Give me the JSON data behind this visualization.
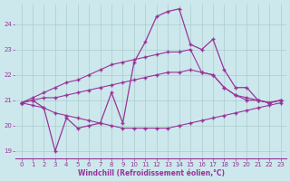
{
  "xlabel": "Windchill (Refroidissement éolien,°C)",
  "background_color": "#cce8ec",
  "grid_color": "#aacccc",
  "line_color": "#993399",
  "x_ticks": [
    0,
    1,
    2,
    3,
    4,
    5,
    6,
    7,
    8,
    9,
    10,
    11,
    12,
    13,
    14,
    15,
    16,
    17,
    18,
    19,
    20,
    21,
    22,
    23
  ],
  "ylim": [
    18.7,
    24.8
  ],
  "xlim": [
    -0.5,
    23.5
  ],
  "yticks": [
    19,
    20,
    21,
    22,
    23,
    24
  ],
  "line1_x": [
    0,
    1,
    2,
    3,
    4,
    5,
    6,
    7,
    8,
    9,
    10,
    11,
    12,
    13,
    14,
    15,
    16,
    17,
    18,
    19,
    20,
    21,
    22,
    23
  ],
  "line1_y": [
    20.9,
    21.0,
    20.7,
    19.0,
    20.3,
    19.9,
    20.0,
    20.1,
    21.3,
    20.1,
    22.5,
    23.3,
    24.3,
    24.5,
    24.6,
    23.2,
    23.0,
    23.4,
    22.2,
    21.5,
    21.5,
    21.0,
    20.9,
    21.0
  ],
  "line2_x": [
    0,
    1,
    2,
    3,
    4,
    5,
    6,
    7,
    8,
    9,
    10,
    11,
    12,
    13,
    14,
    15,
    16,
    17,
    18,
    19,
    20,
    21,
    22,
    23
  ],
  "line2_y": [
    20.9,
    21.1,
    21.3,
    21.5,
    21.7,
    21.8,
    22.0,
    22.2,
    22.4,
    22.5,
    22.6,
    22.7,
    22.8,
    22.9,
    22.9,
    23.0,
    22.1,
    22.0,
    21.5,
    21.2,
    21.0,
    21.0,
    20.9,
    21.0
  ],
  "line3_x": [
    0,
    1,
    2,
    3,
    4,
    5,
    6,
    7,
    8,
    9,
    10,
    11,
    12,
    13,
    14,
    15,
    16,
    17,
    18,
    19,
    20,
    21,
    22,
    23
  ],
  "line3_y": [
    20.9,
    20.8,
    20.7,
    20.5,
    20.4,
    20.3,
    20.2,
    20.1,
    20.0,
    19.9,
    19.9,
    19.9,
    19.9,
    19.9,
    20.0,
    20.1,
    20.2,
    20.3,
    20.4,
    20.5,
    20.6,
    20.7,
    20.8,
    20.9
  ],
  "line4_x": [
    0,
    1,
    2,
    3,
    4,
    5,
    6,
    7,
    8,
    9,
    10,
    11,
    12,
    13,
    14,
    15,
    16,
    17,
    18,
    19,
    20,
    21,
    22,
    23
  ],
  "line4_y": [
    20.9,
    21.0,
    21.1,
    21.1,
    21.2,
    21.3,
    21.4,
    21.5,
    21.6,
    21.7,
    21.8,
    21.9,
    22.0,
    22.1,
    22.1,
    22.2,
    22.1,
    22.0,
    21.5,
    21.2,
    21.1,
    21.0,
    20.9,
    21.0
  ]
}
